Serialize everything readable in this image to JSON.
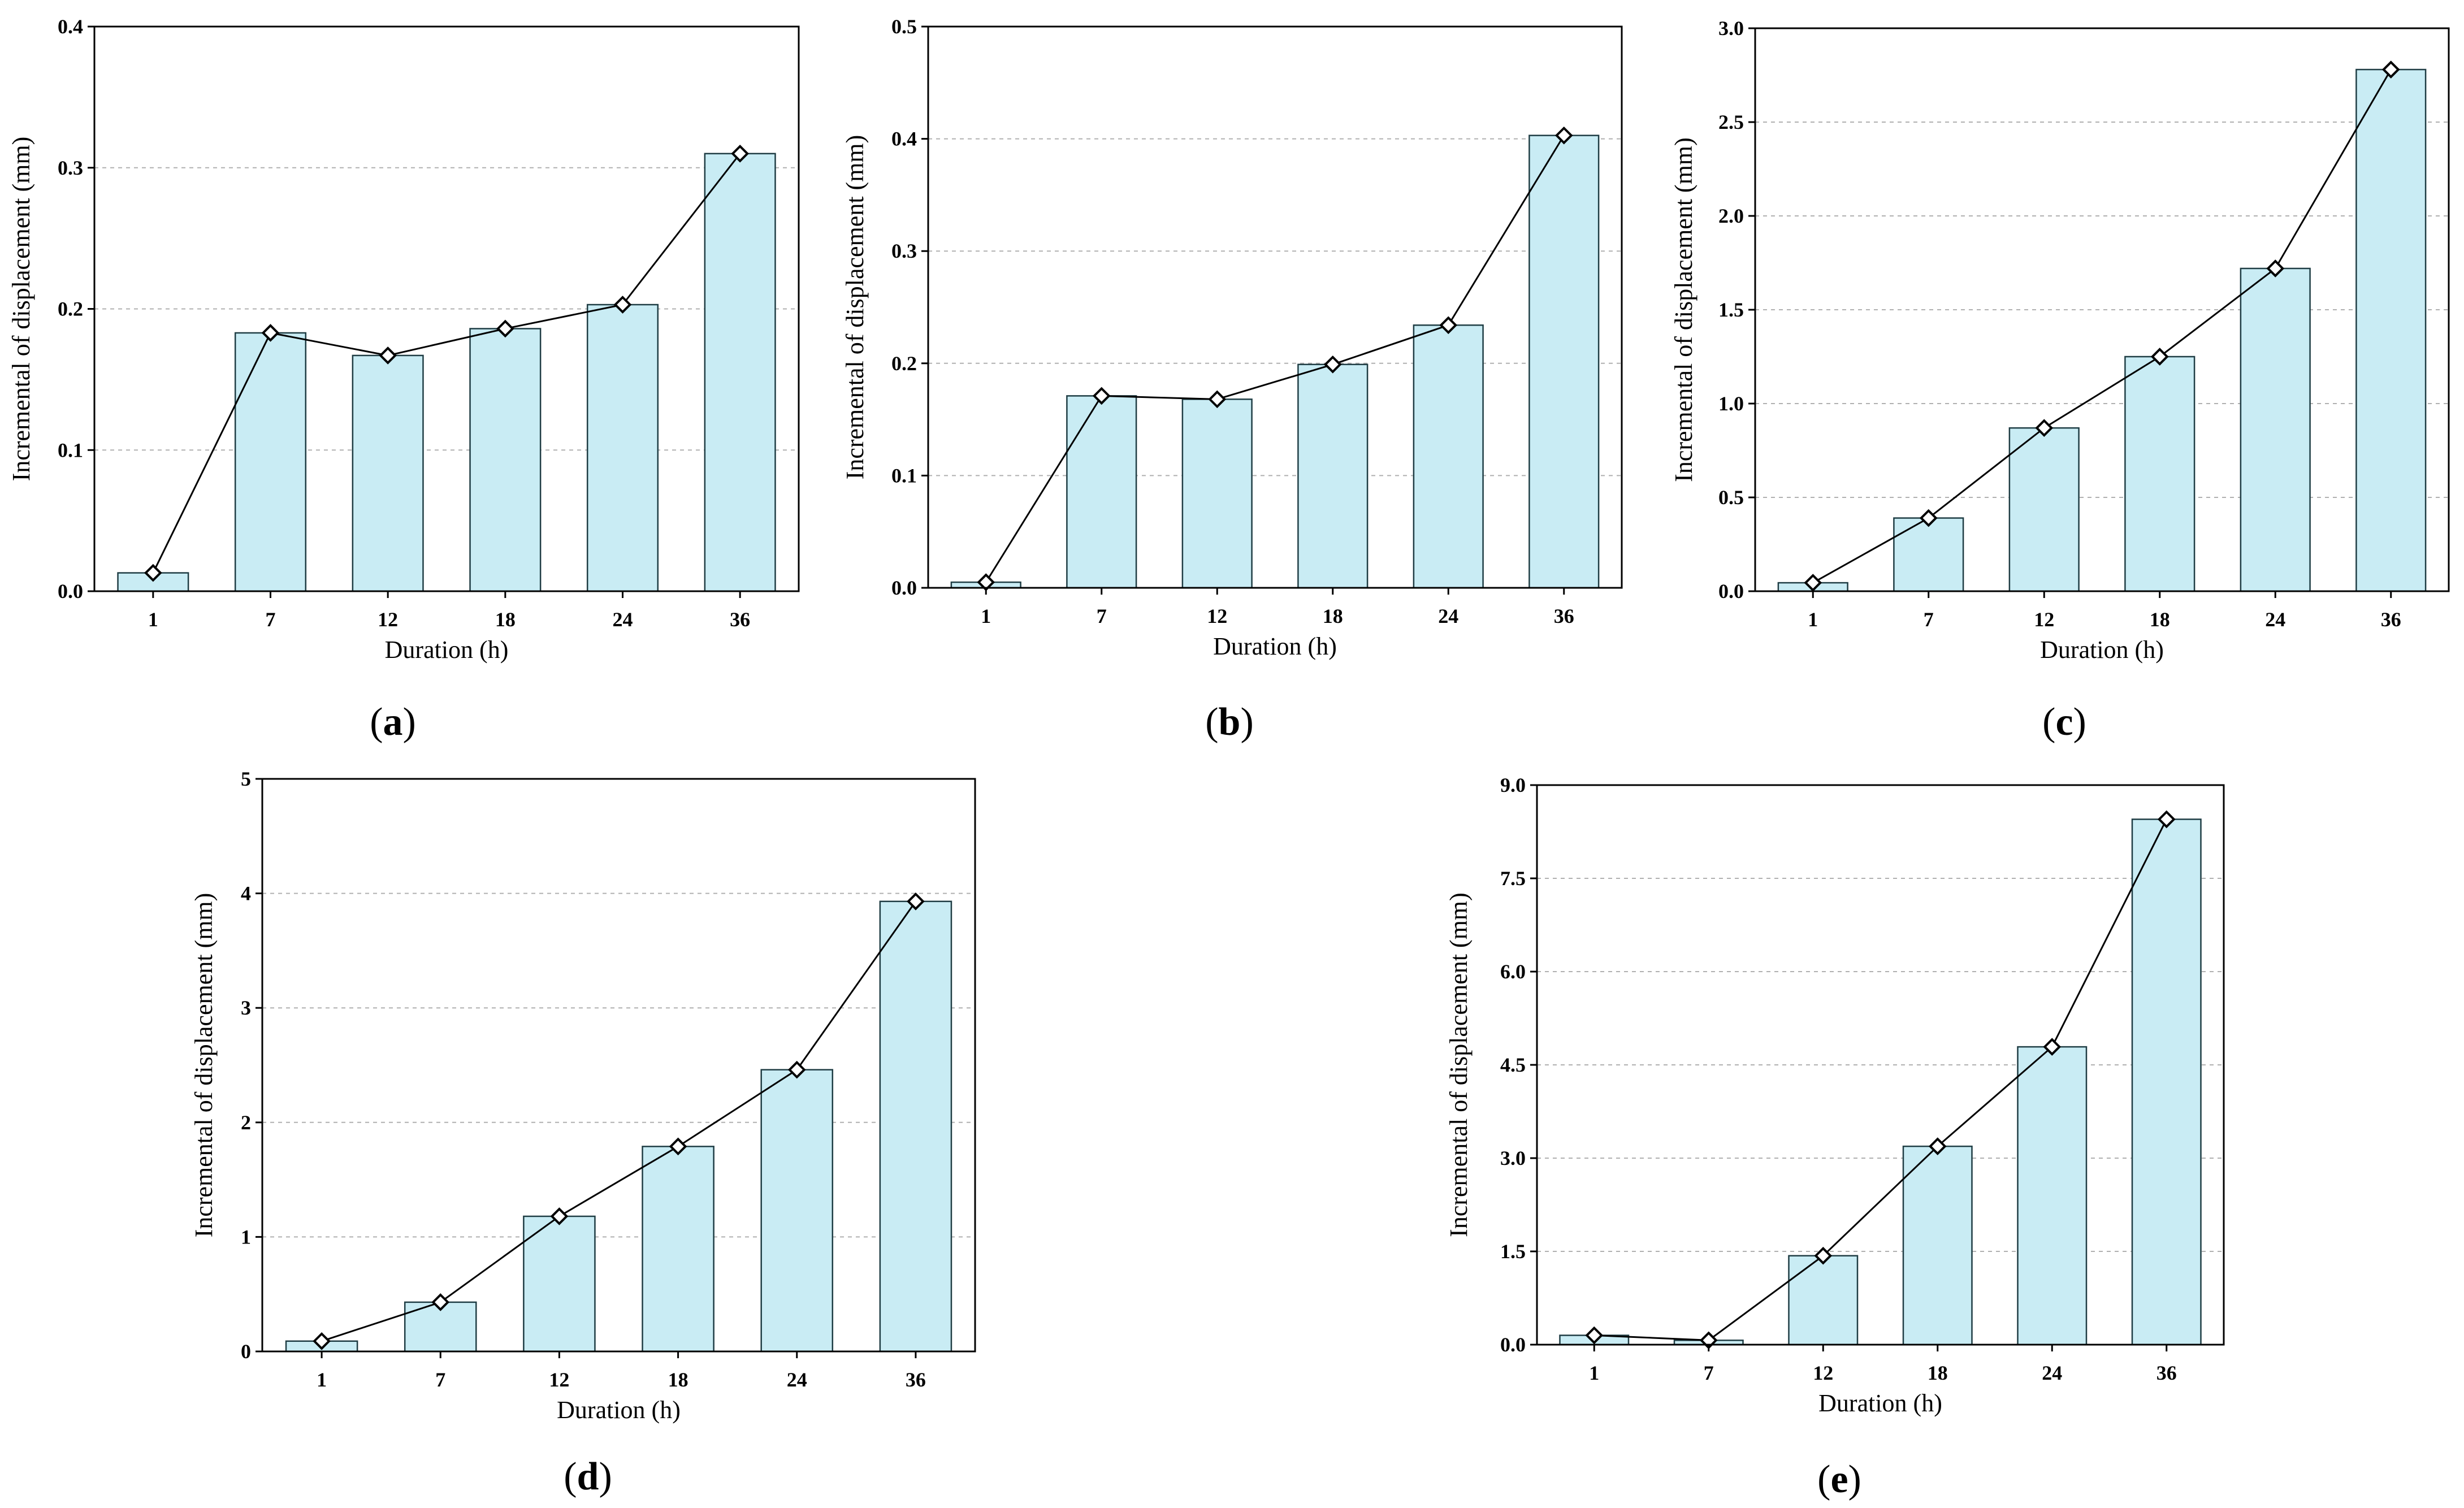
{
  "figure": {
    "charts": [
      {
        "id": "a",
        "panel_label": "a",
        "type": "bar+line",
        "categories": [
          "1",
          "7",
          "12",
          "18",
          "24",
          "36"
        ],
        "values": [
          0.013,
          0.183,
          0.167,
          0.186,
          0.203,
          0.31
        ],
        "ylim": [
          0,
          0.4
        ],
        "yticks": [
          "0.0",
          "0.1",
          "0.2",
          "0.3",
          "0.4"
        ],
        "xlabel": "Duration (h)",
        "ylabel": "Incremental of displacement (mm)",
        "grid": true
      },
      {
        "id": "b",
        "panel_label": "b",
        "type": "bar+line",
        "categories": [
          "1",
          "7",
          "12",
          "18",
          "24",
          "36"
        ],
        "values": [
          0.005,
          0.171,
          0.168,
          0.199,
          0.234,
          0.403
        ],
        "ylim": [
          0,
          0.5
        ],
        "yticks": [
          "0.0",
          "0.1",
          "0.2",
          "0.3",
          "0.4",
          "0.5"
        ],
        "xlabel": "Duration (h)",
        "ylabel": "Incremental of displacement (mm)",
        "grid": true
      },
      {
        "id": "c",
        "panel_label": "c",
        "type": "bar+line",
        "categories": [
          "1",
          "7",
          "12",
          "18",
          "24",
          "36"
        ],
        "values": [
          0.045,
          0.39,
          0.87,
          1.25,
          1.72,
          2.78
        ],
        "ylim": [
          0,
          3.0
        ],
        "yticks": [
          "0.0",
          "0.5",
          "1.0",
          "1.5",
          "2.0",
          "2.5",
          "3.0"
        ],
        "xlabel": "Duration (h)",
        "ylabel": "Incremental of displacement (mm)",
        "grid": true
      },
      {
        "id": "d",
        "panel_label": "d",
        "type": "bar+line",
        "categories": [
          "1",
          "7",
          "12",
          "18",
          "24",
          "36"
        ],
        "values": [
          0.09,
          0.43,
          1.18,
          1.79,
          2.46,
          3.93
        ],
        "ylim": [
          0,
          5
        ],
        "yticks": [
          "0",
          "1",
          "2",
          "3",
          "4",
          "5"
        ],
        "xlabel": "Duration (h)",
        "ylabel": "Incremental of displacement (mm)",
        "grid": true
      },
      {
        "id": "e",
        "panel_label": "e",
        "type": "bar+line",
        "categories": [
          "1",
          "7",
          "12",
          "18",
          "24",
          "36"
        ],
        "values": [
          0.15,
          0.07,
          1.43,
          3.19,
          4.79,
          8.45
        ],
        "ylim": [
          0,
          9.0
        ],
        "yticks": [
          "0.0",
          "1.5",
          "3.0",
          "4.5",
          "6.0",
          "7.5",
          "9.0"
        ],
        "xlabel": "Duration (h)",
        "ylabel": "Incremental of displacement (mm)",
        "grid": true
      }
    ],
    "colors": {
      "bar_fill": "#c9ecf4",
      "bar_stroke": "#1f3d44",
      "line": "#000000",
      "grid": "#b0b0b0",
      "marker_fill": "#ffffff"
    }
  }
}
